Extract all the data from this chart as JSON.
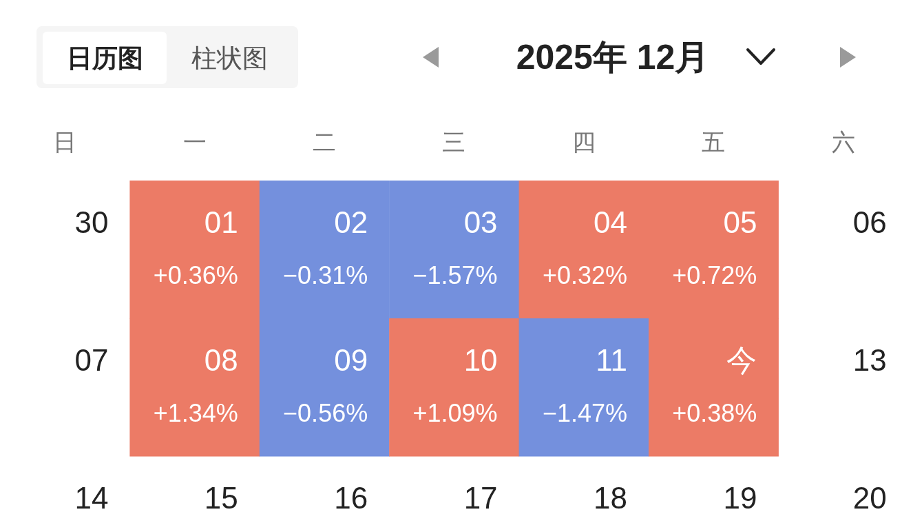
{
  "chart_data": {
    "type": "heatmap",
    "title": "2025年 12月",
    "annotations": [
      "日历图",
      "柱状图",
      "01",
      "02",
      "03",
      "04",
      "05",
      "08",
      "09",
      "10",
      "11",
      "今",
      "15",
      "16",
      "17",
      "18",
      "19"
    ],
    "ylabel": "日",
    "y2label": "六",
    "categories": [
      "一",
      "二",
      "三",
      "四",
      "五"
    ],
    "y_categories": [
      "30",
      "07",
      "14"
    ],
    "y2_categories": [
      "06",
      "13",
      "20"
    ],
    "cells": [
      [
        0.36,
        -0.31,
        -1.57,
        0.32,
        0.72
      ],
      [
        1.34,
        -0.56,
        1.09,
        -1.47,
        0.38
      ],
      [
        null,
        null,
        null,
        null,
        null
      ]
    ],
    "cell_labels": [
      [
        "+0.36%",
        "−0.31%",
        "−1.57%",
        "+0.32%",
        "+0.72%"
      ],
      [
        "+1.34%",
        "−0.56%",
        "+1.09%",
        "−1.47%",
        "+0.38%"
      ],
      [
        null,
        null,
        null,
        null,
        null
      ]
    ],
    "colors": [
      "#7490dd",
      "#ec7b66"
    ]
  }
}
